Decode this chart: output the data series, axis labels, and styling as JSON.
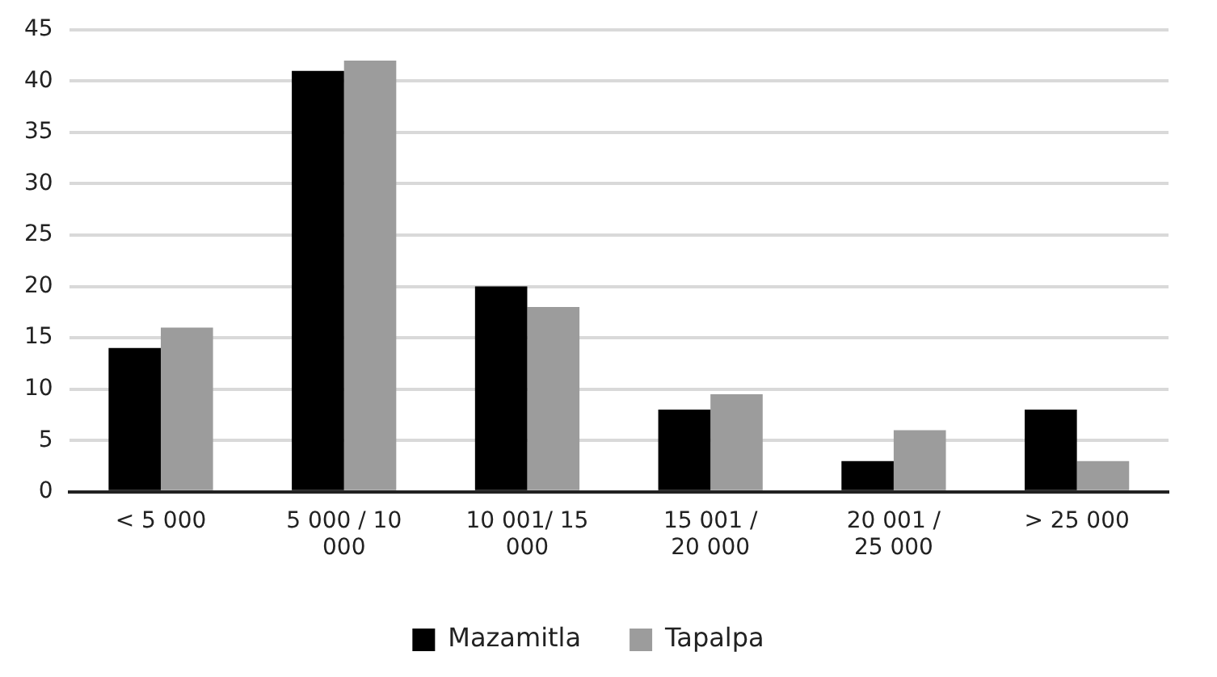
{
  "chart_data": {
    "type": "bar",
    "categories": [
      "< 5 000",
      "5 000 / 10 000",
      "10 001/ 15 000",
      "15 001 / 20 000",
      "20 001 / 25 000",
      "> 25 000"
    ],
    "series": [
      {
        "name": "Mazamitla",
        "color": "#000000",
        "values": [
          14,
          41,
          20,
          8,
          3,
          8
        ]
      },
      {
        "name": "Tapalpa",
        "color": "#9c9c9c",
        "values": [
          16,
          42,
          18,
          9.5,
          6,
          3
        ]
      }
    ],
    "ylim": [
      0,
      45
    ],
    "yticks": [
      0,
      5,
      10,
      15,
      20,
      25,
      30,
      35,
      40,
      45
    ],
    "grid": "y",
    "legend": "bottom"
  }
}
